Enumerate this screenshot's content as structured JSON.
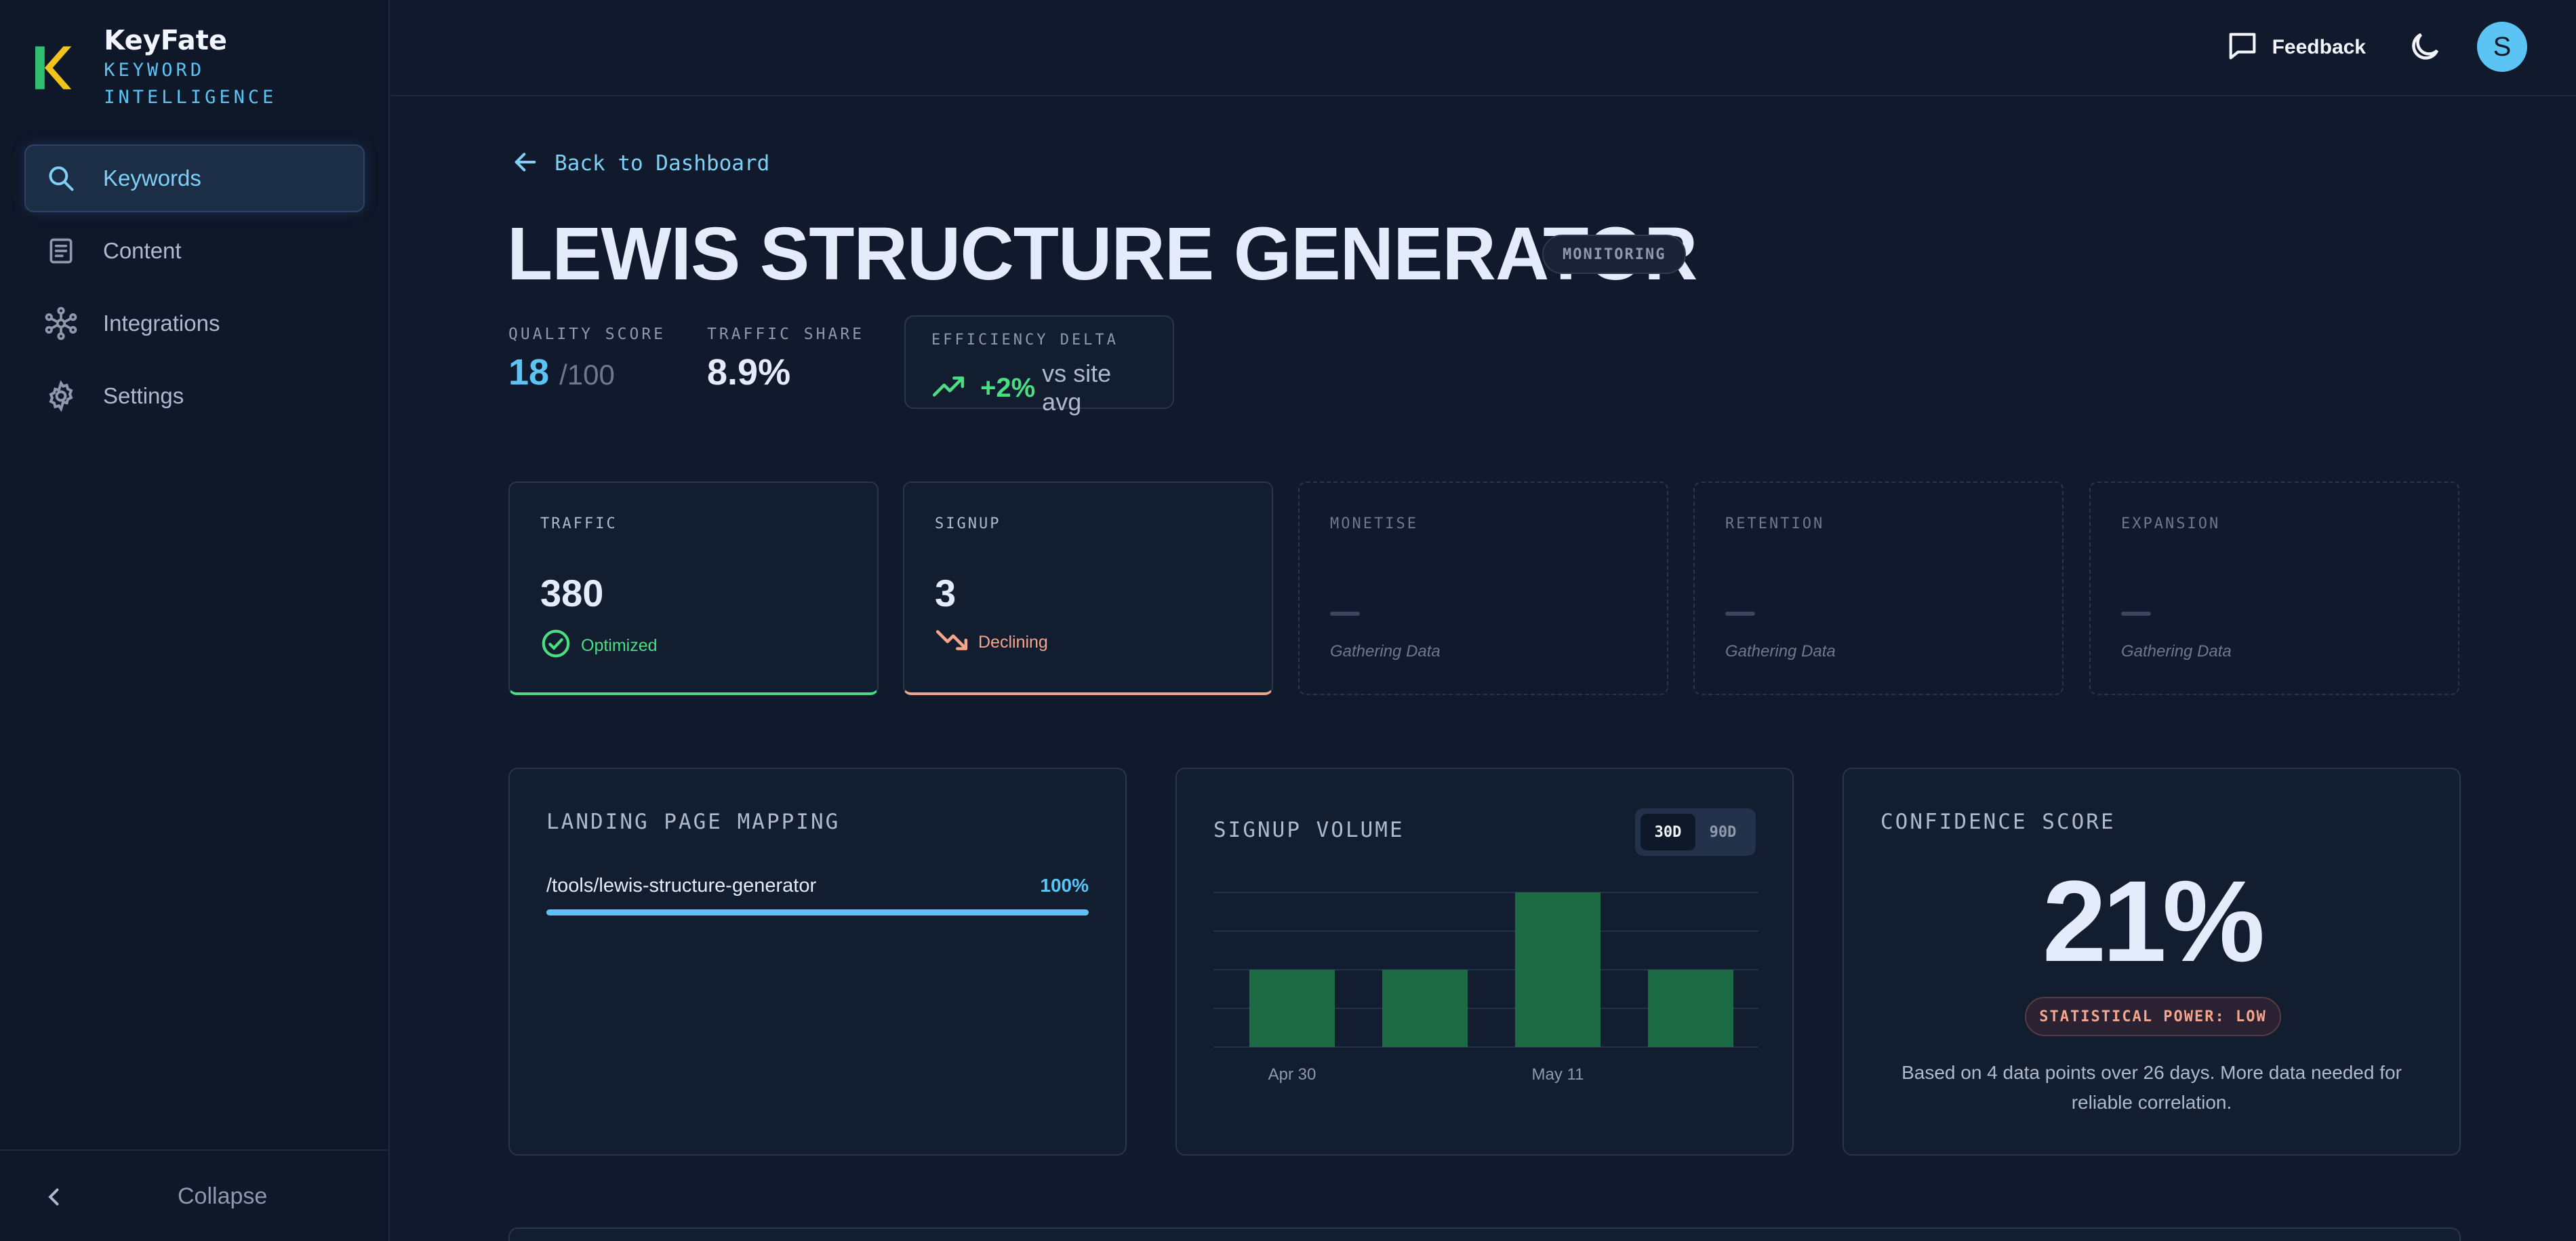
{
  "brand": {
    "name": "KeyFate",
    "tagline": "KEYWORD INTELLIGENCE",
    "logo_letter": "K"
  },
  "sidebar": {
    "items": [
      {
        "label": "Keywords",
        "icon": "search-icon",
        "active": true
      },
      {
        "label": "Content",
        "icon": "document-icon",
        "active": false
      },
      {
        "label": "Integrations",
        "icon": "network-icon",
        "active": false
      },
      {
        "label": "Settings",
        "icon": "gear-icon",
        "active": false
      }
    ],
    "collapse_label": "Collapse"
  },
  "topbar": {
    "feedback_label": "Feedback",
    "avatar_initial": "S"
  },
  "main": {
    "back_label": "Back to Dashboard",
    "title": "LEWIS STRUCTURE GENERATOR",
    "status": "MONITORING",
    "stats": {
      "quality_label": "QUALITY SCORE",
      "quality_value": "18",
      "quality_max": "/100",
      "traffic_share_label": "TRAFFIC SHARE",
      "traffic_share_value": "8.9%",
      "efficiency_label": "EFFICIENCY DELTA",
      "efficiency_value": "+2%",
      "efficiency_suffix": "vs site avg"
    },
    "funnel": [
      {
        "label": "TRAFFIC",
        "value": "380",
        "status": "Optimized"
      },
      {
        "label": "SIGNUP",
        "value": "3",
        "status": "Declining"
      },
      {
        "label": "MONETISE",
        "value": "—",
        "status": "Gathering Data"
      },
      {
        "label": "RETENTION",
        "value": "—",
        "status": "Gathering Data"
      },
      {
        "label": "EXPANSION",
        "value": "—",
        "status": "Gathering Data"
      }
    ],
    "landing": {
      "title": "LANDING PAGE MAPPING",
      "path": "/tools/lewis-structure-generator",
      "percent": "100%",
      "fill_fraction": 1.0
    },
    "signup_volume": {
      "title": "SIGNUP VOLUME",
      "toggle": [
        "30D",
        "90D"
      ],
      "active_range": "30D"
    },
    "confidence": {
      "title": "CONFIDENCE SCORE",
      "value": "21%",
      "power": "STATISTICAL POWER: LOW",
      "note": "Based on 4 data points over 26 days. More data needed for reliable correlation."
    }
  },
  "colors": {
    "accent": "#5cc4f5",
    "positive": "#4ade80",
    "negative": "#f4a58a",
    "bar": "#1c6b45"
  },
  "chart_data": {
    "type": "bar",
    "categories": [
      "Apr 30",
      "",
      "May 11",
      ""
    ],
    "tick_labels": [
      "Apr 30",
      "May 11"
    ],
    "values": [
      1,
      1,
      2,
      1
    ],
    "ylim": [
      0,
      2
    ],
    "grid": true,
    "title": "SIGNUP VOLUME"
  }
}
